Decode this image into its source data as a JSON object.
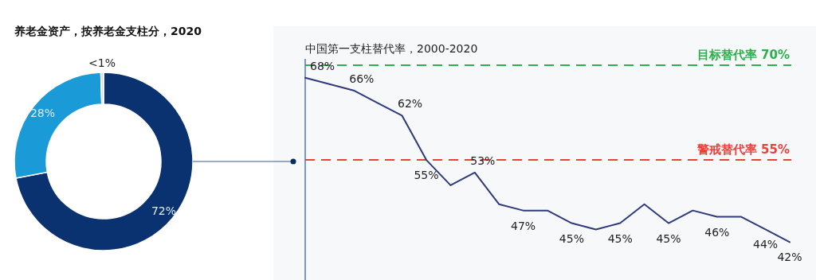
{
  "chart_data": [
    {
      "type": "donut",
      "title": "养老金资产，按养老金支柱分，2020",
      "categories": [
        null,
        null,
        null
      ],
      "values": [
        72,
        27.5,
        0.5
      ],
      "colors": [
        "#0a3270",
        "#1a9ad6",
        "#d3dbe3"
      ],
      "value_labels": [
        "72%",
        "28%",
        "<1%"
      ]
    },
    {
      "type": "line",
      "title": "中国第一支柱替代率，2000-2020",
      "categories": [
        null,
        null,
        null,
        null,
        null,
        null,
        null,
        null,
        null,
        null,
        null,
        null,
        null,
        null,
        null,
        null,
        null,
        null,
        null,
        null,
        null
      ],
      "series": [
        {
          "color": "#2e3a7a",
          "values": [
            68,
            67,
            66,
            64,
            62,
            55,
            51,
            53,
            48,
            47,
            47,
            45,
            44,
            45,
            48,
            45,
            47,
            46,
            46,
            44,
            42
          ],
          "value_labels": [
            "68%",
            null,
            "66%",
            null,
            "62%",
            "55%",
            null,
            "53%",
            null,
            "47%",
            null,
            "45%",
            null,
            "45%",
            null,
            "45%",
            null,
            "46%",
            null,
            "44%",
            "42%"
          ]
        }
      ],
      "ylim": [
        36,
        71
      ],
      "marker": "none",
      "line_style": "solid",
      "ref_lines": [
        {
          "axis": "y",
          "value": 70,
          "label": "目标替代率 70%",
          "color": "#2bb04a",
          "line_style": "dashed"
        },
        {
          "axis": "y",
          "value": 55,
          "label": "警戒替代率 55%",
          "color": "#e8433a",
          "line_style": "dashed"
        }
      ]
    }
  ]
}
